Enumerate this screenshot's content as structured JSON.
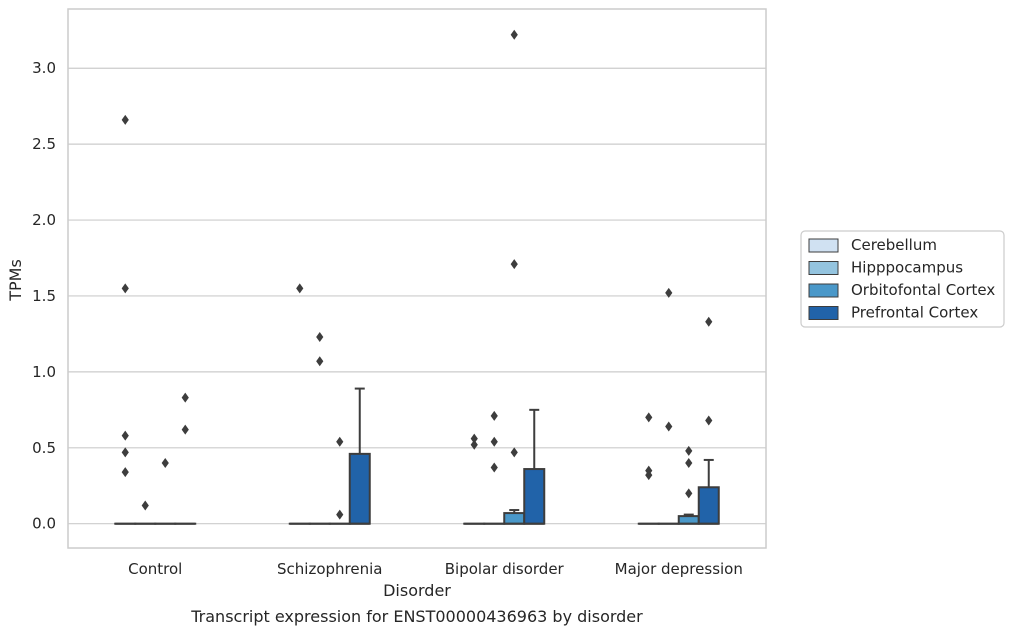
{
  "chart_data": {
    "type": "box",
    "caption": "Transcript expression for ENST00000436963 by disorder",
    "xlabel": "Disorder",
    "ylabel": "TPMs",
    "ylim": [
      -0.16,
      3.39
    ],
    "yticks": [
      "0.0",
      "0.5",
      "1.0",
      "1.5",
      "2.0",
      "2.5",
      "3.0"
    ],
    "ytick_values": [
      0,
      0.5,
      1.0,
      1.5,
      2.0,
      2.5,
      3.0
    ],
    "grid": true,
    "legend_position": "right",
    "categories": [
      "Control",
      "Schizophrenia",
      "Bipolar disorder",
      "Major depression"
    ],
    "series": [
      {
        "name": "Cerebellum",
        "color": "#d0e1f2"
      },
      {
        "name": "Hipppocampus",
        "color": "#94c4df"
      },
      {
        "name": "Orbitofontal Cortex",
        "color": "#4a98c9"
      },
      {
        "name": "Prefrontal Cortex",
        "color": "#2163a9"
      }
    ],
    "boxes": [
      [
        {
          "q1": 0,
          "median": 0,
          "q3": 0,
          "whislo": 0,
          "whishi": 0,
          "fliers": [
            0.34,
            0.47,
            0.58,
            1.55,
            2.66
          ]
        },
        {
          "q1": 0,
          "median": 0,
          "q3": 0,
          "whislo": 0,
          "whishi": 0,
          "fliers": [
            0.12
          ]
        },
        {
          "q1": 0,
          "median": 0,
          "q3": 0,
          "whislo": 0,
          "whishi": 0,
          "fliers": [
            0.4
          ]
        },
        {
          "q1": 0,
          "median": 0,
          "q3": 0,
          "whislo": 0,
          "whishi": 0,
          "fliers": [
            0.62,
            0.83
          ]
        }
      ],
      [
        {
          "q1": 0,
          "median": 0,
          "q3": 0,
          "whislo": 0,
          "whishi": 0,
          "fliers": [
            1.55
          ]
        },
        {
          "q1": 0,
          "median": 0,
          "q3": 0,
          "whislo": 0,
          "whishi": 0,
          "fliers": [
            1.07,
            1.23
          ]
        },
        {
          "q1": 0,
          "median": 0,
          "q3": 0,
          "whislo": 0,
          "whishi": 0,
          "fliers": [
            0.06,
            0.54
          ]
        },
        {
          "q1": 0,
          "median": 0,
          "q3": 0.46,
          "whislo": 0,
          "whishi": 0.89,
          "fliers": []
        }
      ],
      [
        {
          "q1": 0,
          "median": 0,
          "q3": 0,
          "whislo": 0,
          "whishi": 0,
          "fliers": [
            0.52,
            0.56
          ]
        },
        {
          "q1": 0,
          "median": 0,
          "q3": 0,
          "whislo": 0,
          "whishi": 0,
          "fliers": [
            0.37,
            0.54,
            0.71
          ]
        },
        {
          "q1": 0,
          "median": 0,
          "q3": 0.07,
          "whislo": 0,
          "whishi": 0.09,
          "fliers": [
            0.47,
            1.71,
            3.22
          ]
        },
        {
          "q1": 0,
          "median": 0,
          "q3": 0.36,
          "whislo": 0,
          "whishi": 0.75,
          "fliers": []
        }
      ],
      [
        {
          "q1": 0,
          "median": 0,
          "q3": 0,
          "whislo": 0,
          "whishi": 0,
          "fliers": [
            0.32,
            0.35,
            0.7
          ]
        },
        {
          "q1": 0,
          "median": 0,
          "q3": 0,
          "whislo": 0,
          "whishi": 0,
          "fliers": [
            0.64,
            1.52
          ]
        },
        {
          "q1": 0,
          "median": 0,
          "q3": 0.05,
          "whislo": 0,
          "whishi": 0.06,
          "fliers": [
            0.2,
            0.4,
            0.48
          ]
        },
        {
          "q1": 0,
          "median": 0,
          "q3": 0.24,
          "whislo": 0,
          "whishi": 0.42,
          "fliers": [
            0.68,
            1.33
          ]
        }
      ]
    ]
  }
}
